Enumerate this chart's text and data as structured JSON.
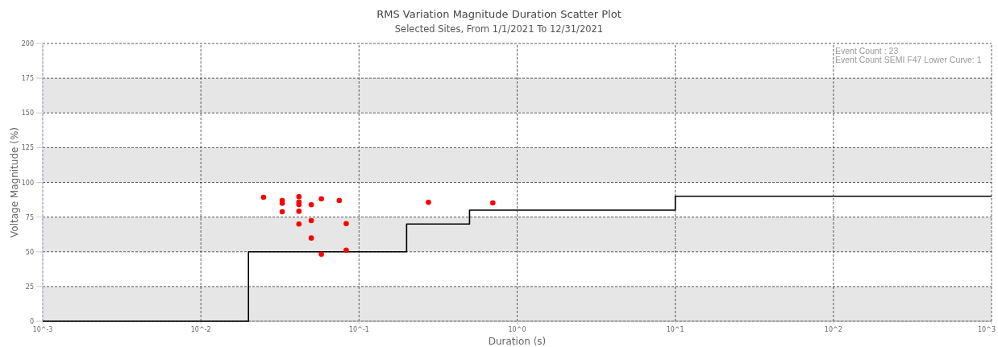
{
  "chart_data": {
    "type": "scatter",
    "title": "RMS Variation Magnitude Duration Scatter Plot",
    "subtitle": "Selected Sites, From 1/1/2021 To 12/31/2021",
    "xlabel": "Duration (s)",
    "ylabel": "Voltage Magnitude (%)",
    "annotations": [
      "Event Count : 23",
      "Event Count SEMI F47 Lower Curve: 1"
    ],
    "log": "x",
    "grid": true,
    "xlim": [
      0.001,
      1000
    ],
    "xticks": [
      {
        "value": 0.001,
        "label": "10^-3"
      },
      {
        "value": 0.01,
        "label": "10^-2"
      },
      {
        "value": 0.1,
        "label": "10^-1"
      },
      {
        "value": 1,
        "label": "10^0"
      },
      {
        "value": 10,
        "label": "10^1"
      },
      {
        "value": 100,
        "label": "10^2"
      },
      {
        "value": 1000,
        "label": "10^3"
      }
    ],
    "ylim": [
      0,
      200
    ],
    "yticks": [
      0,
      25,
      50,
      75,
      100,
      125,
      150,
      175,
      200
    ],
    "bands": [
      {
        "axis": "y",
        "from": 0,
        "to": 25,
        "color": "#e6e6e6"
      },
      {
        "axis": "y",
        "from": 50,
        "to": 75,
        "color": "#e6e6e6"
      },
      {
        "axis": "y",
        "from": 100,
        "to": 125,
        "color": "#e6e6e6"
      },
      {
        "axis": "y",
        "from": 150,
        "to": 175,
        "color": "#e6e6e6"
      }
    ],
    "series": [
      {
        "type": "step",
        "color": "#000000",
        "x": [
          0.001,
          0.02,
          0.2,
          0.5,
          10,
          1000
        ],
        "values": [
          0,
          50,
          70,
          80,
          90,
          90
        ]
      },
      {
        "marker": "circle",
        "color": "#ff0000",
        "x": [
          0.0249,
          0.0327,
          0.0327,
          0.0327,
          0.0417,
          0.0417,
          0.0417,
          0.0417,
          0.0417,
          0.0499,
          0.0499,
          0.0499,
          0.0578,
          0.0578,
          0.075,
          0.083,
          0.083,
          0.275,
          0.702
        ],
        "values": [
          89.3,
          87,
          85,
          78.8,
          89.7,
          85.8,
          84,
          79.2,
          70,
          83.9,
          72.5,
          59.9,
          88.1,
          48.3,
          87,
          70.3,
          51.2,
          85.6,
          85.2
        ]
      }
    ]
  }
}
